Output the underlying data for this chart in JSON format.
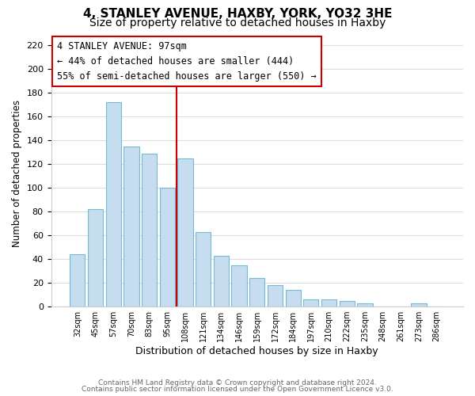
{
  "title": "4, STANLEY AVENUE, HAXBY, YORK, YO32 3HE",
  "subtitle": "Size of property relative to detached houses in Haxby",
  "xlabel": "Distribution of detached houses by size in Haxby",
  "ylabel": "Number of detached properties",
  "categories": [
    "32sqm",
    "45sqm",
    "57sqm",
    "70sqm",
    "83sqm",
    "95sqm",
    "108sqm",
    "121sqm",
    "134sqm",
    "146sqm",
    "159sqm",
    "172sqm",
    "184sqm",
    "197sqm",
    "210sqm",
    "222sqm",
    "235sqm",
    "248sqm",
    "261sqm",
    "273sqm",
    "286sqm"
  ],
  "values": [
    44,
    82,
    172,
    135,
    129,
    100,
    125,
    63,
    43,
    35,
    24,
    18,
    14,
    6,
    6,
    5,
    3,
    0,
    0,
    3,
    0
  ],
  "bar_color": "#c5ddef",
  "bar_edge_color": "#7ab8d8",
  "vline_x_index": 5,
  "vline_color": "#cc0000",
  "ylim": [
    0,
    225
  ],
  "yticks": [
    0,
    20,
    40,
    60,
    80,
    100,
    120,
    140,
    160,
    180,
    200,
    220
  ],
  "annotation_title": "4 STANLEY AVENUE: 97sqm",
  "annotation_line1": "← 44% of detached houses are smaller (444)",
  "annotation_line2": "55% of semi-detached houses are larger (550) →",
  "annotation_box_facecolor": "white",
  "annotation_box_edgecolor": "#cc0000",
  "footer1": "Contains HM Land Registry data © Crown copyright and database right 2024.",
  "footer2": "Contains public sector information licensed under the Open Government Licence v3.0.",
  "background_color": "white",
  "grid_color": "#dddddd",
  "title_fontsize": 11,
  "subtitle_fontsize": 10
}
